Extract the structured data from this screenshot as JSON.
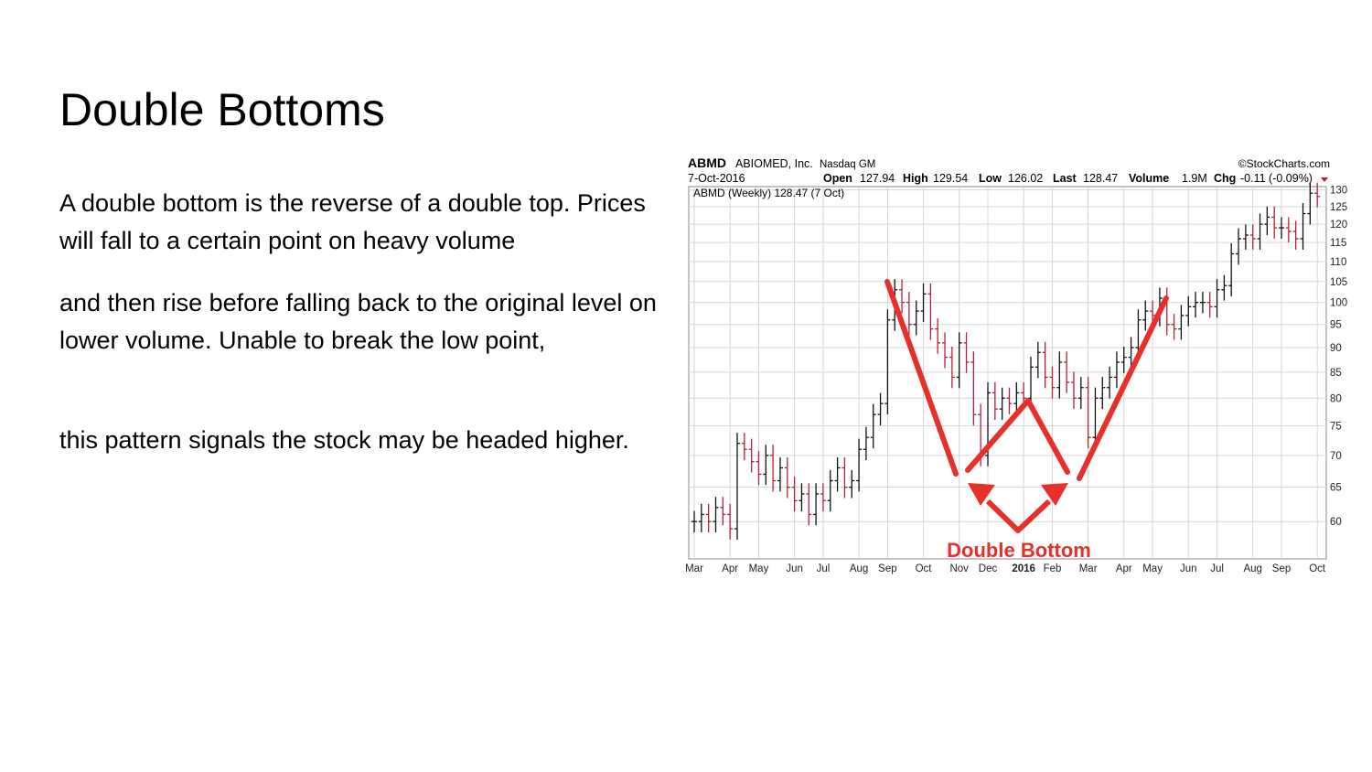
{
  "slide": {
    "title": "Double Bottoms",
    "paragraphs": [
      "A double bottom is the reverse of a double top. Prices will fall to a certain point on heavy volume",
      "and then rise before falling back to the original level on lower volume. Unable to break the low point,",
      "this pattern signals the stock may be headed higher."
    ]
  },
  "chart_header": {
    "symbol": "ABMD",
    "company": "ABIOMED, Inc.",
    "exchange": "Nasdaq GM",
    "copyright": "©StockCharts.com",
    "date": "7-Oct-2016",
    "open_label": "Open",
    "open_value": "127.94",
    "high_label": "High",
    "high_value": "129.54",
    "low_label": "Low",
    "low_value": "126.02",
    "last_label": "Last",
    "last_value": "128.47",
    "volume_label": "Volume",
    "volume_value": "1.9M",
    "chg_label": "Chg",
    "chg_value": "-0.11 (-0.09%)",
    "legend": "ABMD (Weekly) 128.47 (7 Oct)"
  },
  "annotation": {
    "label": "Double Bottom",
    "color": "#e8302a"
  },
  "colors": {
    "up": "#111111",
    "down": "#b5203a",
    "grid": "#d6d6d6",
    "annotation": "#e8302a"
  },
  "chart_data": {
    "type": "bar",
    "ohlc": true,
    "ylim": [
      55,
      131
    ],
    "y_scale": "log",
    "y_ticks": [
      60,
      65,
      70,
      75,
      80,
      85,
      90,
      95,
      100,
      105,
      110,
      115,
      120,
      125,
      130
    ],
    "x_ticks": [
      "Mar",
      "Apr",
      "May",
      "Jun",
      "Jul",
      "Aug",
      "Sep",
      "Oct",
      "Nov",
      "Dec",
      "2016",
      "Feb",
      "Mar",
      "Apr",
      "May",
      "Jun",
      "Jul",
      "Aug",
      "Sep",
      "Oct"
    ],
    "legend": "ABMD (Weekly) 128.47 (7 Oct)",
    "closes": [
      60,
      61,
      60,
      62,
      61,
      59,
      72,
      71,
      69,
      67,
      70,
      66,
      68,
      65,
      63,
      64,
      61,
      64,
      63,
      66,
      68,
      65,
      66,
      71,
      73,
      77,
      79,
      96,
      103,
      100,
      95,
      98,
      102,
      94,
      91,
      88,
      84,
      91,
      87,
      77,
      70,
      81,
      78,
      80,
      79,
      81,
      80,
      86,
      89,
      84,
      82,
      87,
      83,
      80,
      82,
      73,
      80,
      82,
      84,
      87,
      88,
      90,
      96,
      98,
      97,
      101,
      95,
      94,
      97,
      99,
      100,
      100,
      99,
      103,
      104,
      112,
      116,
      117,
      116,
      120,
      122,
      119,
      119,
      118,
      116,
      123,
      129,
      128
    ],
    "series": [
      {
        "values": [
          60,
          61,
          60,
          62,
          61,
          59,
          72,
          71,
          69,
          67,
          70,
          66,
          68,
          65,
          63,
          64,
          61,
          64,
          63,
          66,
          68,
          65,
          66,
          71,
          73,
          77,
          79,
          96,
          103,
          100,
          95,
          98,
          102,
          94,
          91,
          88,
          84,
          91,
          87,
          77,
          70,
          81,
          78,
          80,
          79,
          81,
          80,
          86,
          89,
          84,
          82,
          87,
          83,
          80,
          82,
          73,
          80,
          82,
          84,
          87,
          88,
          90,
          96,
          98,
          97,
          101,
          95,
          94,
          97,
          99,
          100,
          100,
          99,
          103,
          104,
          112,
          116,
          117,
          116,
          120,
          122,
          119,
          119,
          118,
          116,
          123,
          129,
          128
        ]
      }
    ],
    "annotation_text": "Double Bottom"
  }
}
